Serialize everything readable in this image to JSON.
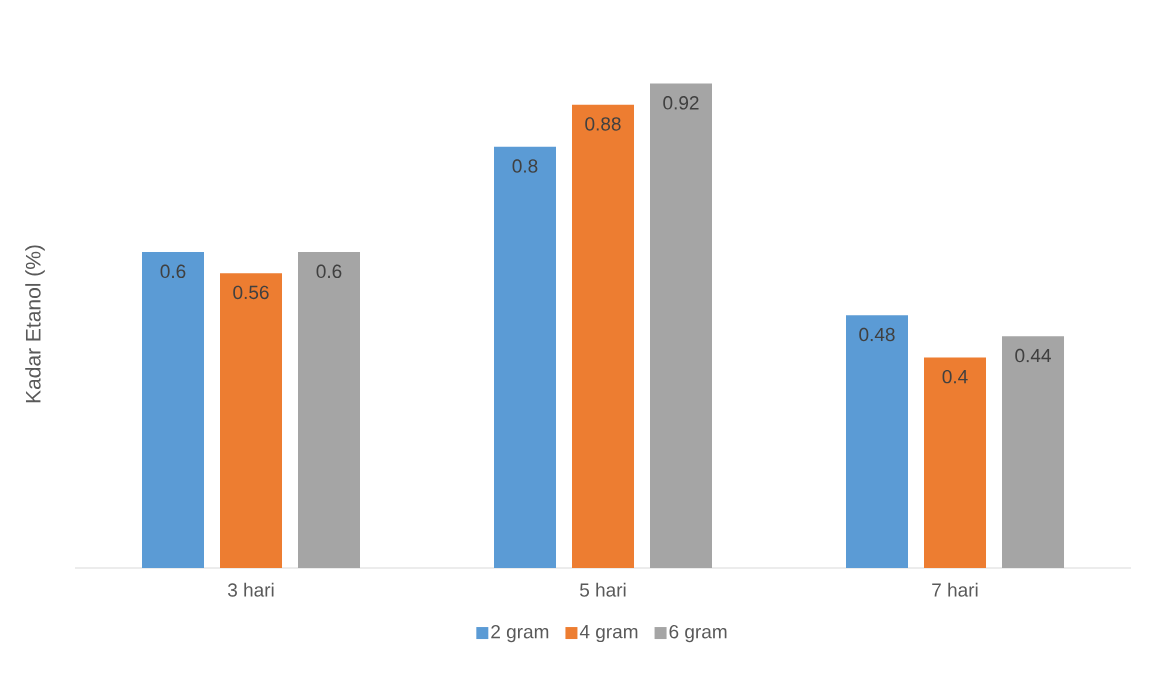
{
  "chart_data": {
    "type": "bar",
    "ylabel": "Kadar Etanol (%)",
    "categories": [
      "3 hari",
      "5 hari",
      "7 hari"
    ],
    "legend": "bottom",
    "series": [
      {
        "name": "2 gram",
        "color": "#5b9bd5",
        "values": [
          0.6,
          0.8,
          0.48
        ],
        "value_labels": [
          "0.6",
          "0.8",
          "0.48"
        ]
      },
      {
        "name": "4 gram",
        "color": "#ed7d31",
        "values": [
          0.56,
          0.88,
          0.4
        ],
        "value_labels": [
          "0.56",
          "0.88",
          "0.4"
        ]
      },
      {
        "name": "6 gram",
        "color": "#a5a5a5",
        "values": [
          0.6,
          0.92,
          0.44
        ],
        "value_labels": [
          "0.6",
          "0.92",
          "0.44"
        ]
      }
    ]
  }
}
